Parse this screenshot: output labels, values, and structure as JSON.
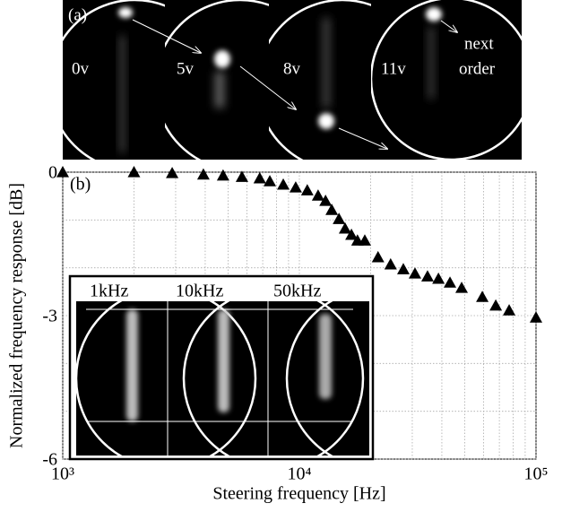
{
  "chart_data": {
    "type": "scatter",
    "xlabel": "Steering frequency [Hz]",
    "ylabel": "Normalized frequency response [dB]",
    "x": [
      1000,
      2000,
      2900,
      3930,
      4760,
      5720,
      6800,
      7500,
      8550,
      9650,
      10800,
      12000,
      12900,
      13700,
      14700,
      15600,
      16600,
      17600,
      18900,
      21500,
      24300,
      27500,
      30800,
      34800,
      38700,
      43300,
      48500,
      59300,
      67600,
      77000,
      100000
    ],
    "series": [
      {
        "color": "#000000",
        "values": [
          0,
          0,
          -0.02,
          -0.05,
          -0.07,
          -0.1,
          -0.13,
          -0.19,
          -0.26,
          -0.32,
          -0.38,
          -0.49,
          -0.6,
          -0.79,
          -0.98,
          -1.18,
          -1.31,
          -1.43,
          -1.43,
          -1.78,
          -1.93,
          -2.03,
          -2.12,
          -2.18,
          -2.23,
          -2.31,
          -2.42,
          -2.61,
          -2.79,
          -2.89,
          -3.04
        ]
      }
    ],
    "xscale": "log",
    "xlim": [
      1000,
      100000
    ],
    "xticks": [
      {
        "value": 1000,
        "label": "10³"
      },
      {
        "value": 10000,
        "label": "10⁴"
      },
      {
        "value": 100000,
        "label": "10⁵"
      }
    ],
    "ylim": [
      -6,
      0
    ],
    "yticks": [
      0,
      -3,
      -6
    ],
    "ygrid": [
      -1,
      -2,
      -4,
      -5
    ],
    "grid": true,
    "minor_grid": true,
    "panel_b_label": "(b)",
    "panel_a": {
      "label": "(a)",
      "frames": [
        "0v",
        "5v",
        "8v",
        "11v"
      ],
      "annotation": [
        "next",
        "order"
      ]
    },
    "inset": {
      "frames": [
        "1kHz",
        "10kHz",
        "50kHz"
      ]
    }
  }
}
